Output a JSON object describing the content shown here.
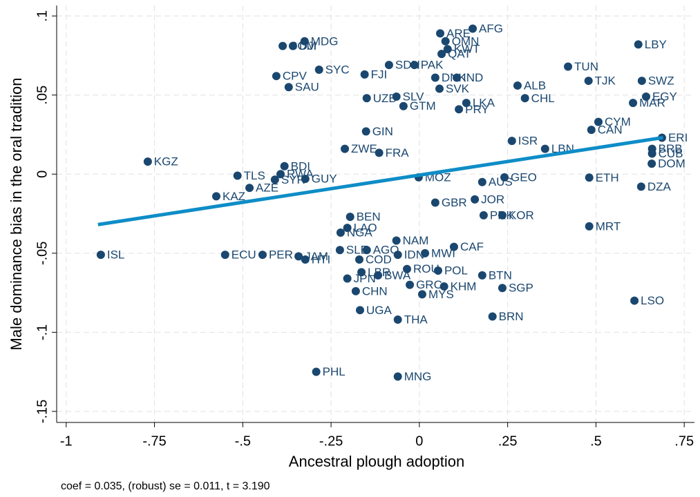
{
  "chart_data": {
    "type": "scatter",
    "x_label": "Ancestral plough adoption",
    "y_label": "Male dominance bias in the oral tradition",
    "note": "coef = 0.035, (robust) se = 0.011, t = 3.190",
    "color": "#1a476f",
    "label_color": "#1a476f",
    "grid": true,
    "xlim": [
      -1.027,
      0.779
    ],
    "ylim": [
      -0.157,
      0.1066
    ],
    "xticks": [
      -1,
      {
        "value": -0.75,
        "label": "-.75"
      },
      {
        "value": -0.5,
        "label": "-.5"
      },
      {
        "value": -0.25,
        "label": "-.25"
      },
      0,
      {
        "value": 0.25,
        "label": ".25"
      },
      {
        "value": 0.5,
        "label": ".5"
      },
      {
        "value": 0.75,
        "label": ".75"
      }
    ],
    "yticks": [
      {
        "value": -0.15,
        "label": "-.15"
      },
      {
        "value": -0.1,
        "label": "-.1"
      },
      {
        "value": -0.05,
        "label": "-.05"
      },
      0,
      {
        "value": 0.05,
        "label": ".05"
      },
      {
        "value": 0.1,
        "label": ".1"
      }
    ],
    "fit_line": {
      "color": "#0e8dc7",
      "x": [
        -0.91,
        0.69
      ],
      "y": [
        -0.0319,
        0.0231
      ]
    },
    "point_labels": [
      "ISL",
      "KGZ",
      "KAZ",
      "TLS",
      "AZE",
      "ECU",
      "PER",
      "JAM",
      "HTI",
      "CPV",
      "SAU",
      "COM",
      "DJI",
      "MDG",
      "SYC",
      "FJI",
      "SDN",
      "PAK",
      "ARE",
      "AFG",
      "OMN",
      "QAT",
      "KWT",
      "DNK",
      "IND",
      "SVK",
      "UZB",
      "SLV",
      "GTM",
      "LKA",
      "PRY",
      "ALB",
      "CHL",
      "TUN",
      "TJK",
      "LBY",
      "SWZ",
      "EGY",
      "MAR",
      "CYM",
      "CAN",
      "ERI",
      "BRB",
      "CUB",
      "DOM",
      "ETH",
      "DZA",
      "MRT",
      "LSO",
      "LBN",
      "ISR",
      "BTN",
      "SGP",
      "BRN",
      "THA",
      "UGA",
      "CHN",
      "JPN",
      "PHL",
      "MNG",
      "MYS",
      "KHM",
      "GRC",
      "POL",
      "ROU",
      "BWA",
      "LBR",
      "COD",
      "SLE",
      "AGO",
      "IDN",
      "MWI",
      "CAF",
      "NAM",
      "NGA",
      "LAO",
      "BEN",
      "JOR",
      "PRK",
      "KOR",
      "GBR",
      "AUS",
      "GEO",
      "MOZ",
      "BDI",
      "RWA",
      "SYR",
      "GUY",
      "ZWE",
      "FRA",
      "GIN"
    ],
    "x": [
      -0.902,
      -0.769,
      -0.575,
      -0.515,
      -0.481,
      -0.55,
      -0.444,
      -0.342,
      -0.323,
      -0.405,
      -0.37,
      -0.387,
      -0.358,
      -0.325,
      -0.284,
      -0.155,
      -0.086,
      -0.014,
      0.059,
      0.151,
      0.074,
      0.063,
      0.08,
      0.045,
      0.106,
      0.057,
      -0.149,
      -0.065,
      -0.045,
      0.133,
      0.112,
      0.278,
      0.299,
      0.421,
      0.479,
      0.62,
      0.63,
      0.642,
      0.605,
      0.507,
      0.487,
      0.687,
      0.659,
      0.659,
      0.658,
      0.481,
      0.628,
      0.481,
      0.609,
      0.356,
      0.262,
      0.178,
      0.235,
      0.207,
      -0.061,
      -0.168,
      -0.18,
      -0.204,
      -0.292,
      -0.061,
      0.008,
      0.07,
      -0.027,
      0.053,
      -0.035,
      -0.117,
      -0.164,
      -0.17,
      -0.225,
      -0.149,
      -0.061,
      0.016,
      0.098,
      -0.065,
      -0.223,
      -0.204,
      -0.196,
      0.157,
      0.182,
      0.235,
      0.045,
      0.178,
      0.241,
      -0.002,
      -0.382,
      -0.393,
      -0.409,
      -0.323,
      -0.211,
      -0.114,
      -0.151
    ],
    "values": [
      -0.051,
      0.0079,
      -0.014,
      -0.001,
      -0.0087,
      -0.051,
      -0.051,
      -0.052,
      -0.054,
      0.062,
      0.055,
      0.081,
      0.081,
      0.084,
      0.066,
      0.063,
      0.069,
      0.069,
      0.089,
      0.092,
      0.084,
      0.076,
      0.079,
      0.061,
      0.061,
      0.054,
      0.048,
      0.049,
      0.043,
      0.045,
      0.041,
      0.056,
      0.048,
      0.068,
      0.059,
      0.082,
      0.059,
      0.049,
      0.045,
      0.033,
      0.028,
      0.023,
      0.016,
      0.013,
      0.0066,
      -0.0022,
      -0.0079,
      -0.033,
      -0.08,
      0.016,
      0.021,
      -0.064,
      -0.072,
      -0.09,
      -0.092,
      -0.086,
      -0.074,
      -0.066,
      -0.125,
      -0.128,
      -0.076,
      -0.071,
      -0.07,
      -0.061,
      -0.06,
      -0.064,
      -0.062,
      -0.054,
      -0.048,
      -0.048,
      -0.051,
      -0.05,
      -0.046,
      -0.042,
      -0.037,
      -0.034,
      -0.027,
      -0.016,
      -0.026,
      -0.026,
      -0.018,
      -0.005,
      -0.002,
      -0.002,
      0.005,
      0.0,
      -0.0035,
      -0.003,
      0.016,
      0.0135,
      0.027
    ]
  }
}
